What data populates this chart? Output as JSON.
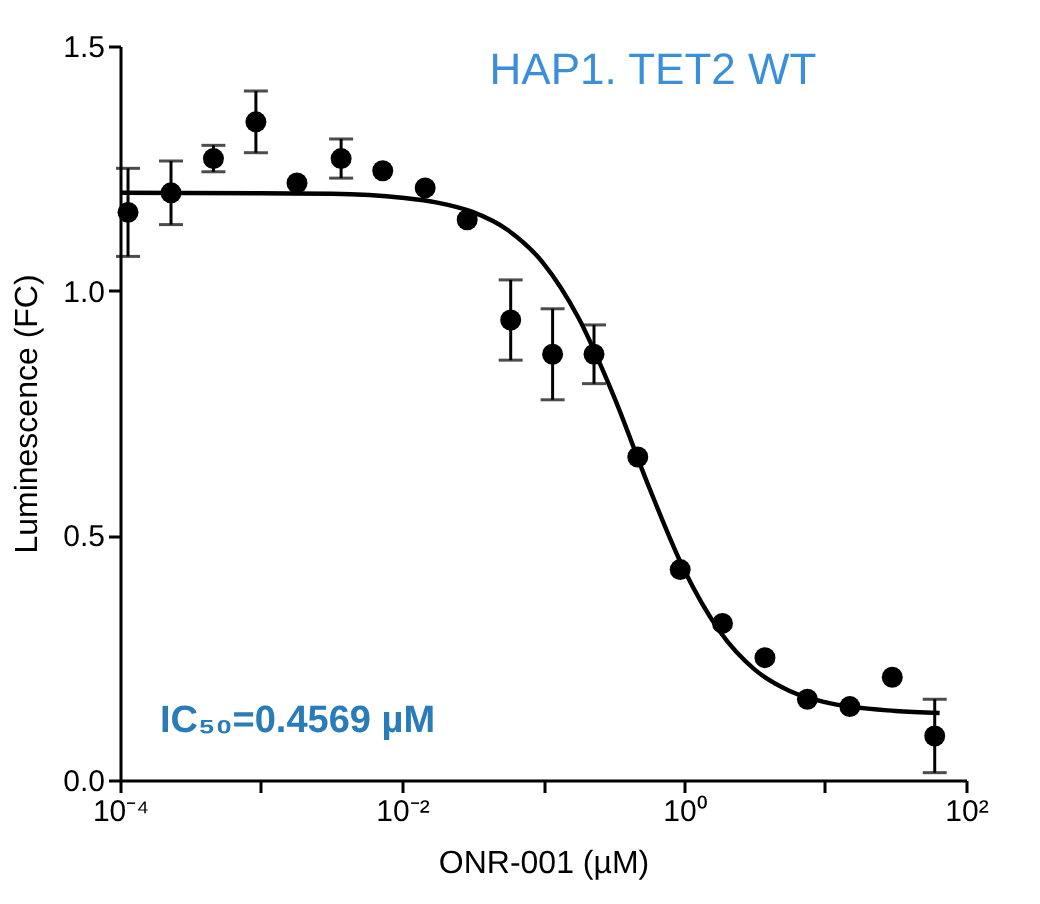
{
  "chart_data": {
    "type": "scatter",
    "title": "HAP1. TET2 WT",
    "xlabel": "ONR-001 (µM)",
    "ylabel": "Luminescence (FC)",
    "annotations": [
      "IC₅₀=0.4569 µM"
    ],
    "series": [
      {
        "color": "#000000",
        "marker": "circle",
        "x": [
          0.000114,
          0.00023,
          0.00046,
          0.00092,
          0.0018,
          0.0037,
          0.0073,
          0.0146,
          0.029,
          0.059,
          0.117,
          0.23,
          0.47,
          0.94,
          1.875,
          3.75,
          7.5,
          15,
          30,
          60
        ],
        "values": [
          1.16,
          1.2,
          1.27,
          1.345,
          1.22,
          1.27,
          1.245,
          1.21,
          1.145,
          0.94,
          0.87,
          0.87,
          0.66,
          0.43,
          0.32,
          0.25,
          0.165,
          0.15,
          0.21,
          0.09
        ],
        "errors": [
          0.09,
          0.065,
          0.027,
          0.063,
          null,
          0.04,
          null,
          null,
          null,
          0.082,
          0.093,
          0.06,
          null,
          null,
          null,
          null,
          null,
          null,
          null,
          0.075
        ]
      },
      {
        "type": "line",
        "color": "#000000",
        "line_style": "solid",
        "x": [
          0.0001,
          0.001,
          0.00316,
          0.01,
          0.0178,
          0.0316,
          0.0562,
          0.1,
          0.178,
          0.316,
          0.562,
          1,
          1.78,
          3.16,
          5.62,
          10,
          31.6,
          65
        ],
        "values": [
          1.2,
          1.199,
          1.198,
          1.19,
          1.18,
          1.161,
          1.124,
          1.057,
          0.945,
          0.786,
          0.6,
          0.43,
          0.305,
          0.226,
          0.182,
          0.159,
          0.141,
          0.137
        ]
      }
    ],
    "log": "x",
    "grid": false,
    "xlim": [
      0.0001,
      100
    ],
    "xticks": [
      {
        "value": 0.0001,
        "label": "10⁻⁴"
      },
      {
        "value": 0.001,
        "label": null
      },
      {
        "value": 0.01,
        "label": "10⁻²"
      },
      {
        "value": 0.1,
        "label": null
      },
      {
        "value": 1,
        "label": "10⁰"
      },
      {
        "value": 10,
        "label": null
      },
      {
        "value": 100,
        "label": "10²"
      }
    ],
    "ylim": [
      0,
      1.5
    ],
    "yticks": [
      {
        "value": 0,
        "label": "0.0"
      },
      {
        "value": 0.5,
        "label": "0.5"
      },
      {
        "value": 1,
        "label": "1.0"
      },
      {
        "value": 1.5,
        "label": "1.5"
      }
    ]
  }
}
